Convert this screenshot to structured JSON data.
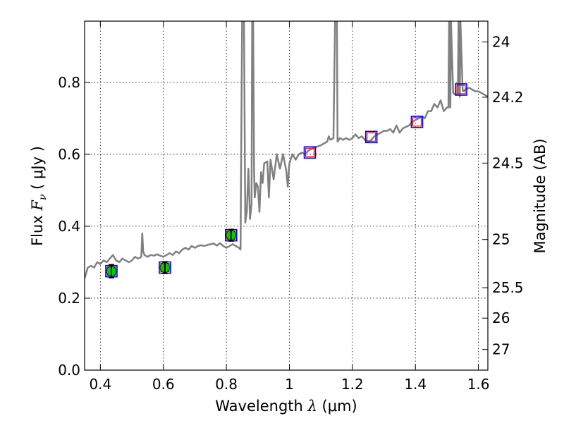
{
  "chart_data": {
    "type": "line",
    "title": "",
    "xlabel": {
      "prefix": "Wavelength ",
      "symbol": "λ",
      "unit": "(μm)"
    },
    "ylabel": {
      "prefix": "Flux ",
      "symbol": "F",
      "subscript": "ν",
      "unit": "( μJy )"
    },
    "y2label": "Magnitude (AB)",
    "xlim": [
      0.35,
      1.63
    ],
    "ylim": [
      0.0,
      0.97
    ],
    "x_ticks": [
      {
        "value": 0.4,
        "label": "0.4"
      },
      {
        "value": 0.6,
        "label": "0.6"
      },
      {
        "value": 0.8,
        "label": "0.8"
      },
      {
        "value": 1.0,
        "label": "1"
      },
      {
        "value": 1.2,
        "label": "1.2"
      },
      {
        "value": 1.4,
        "label": "1.4"
      },
      {
        "value": 1.6,
        "label": "1.6"
      }
    ],
    "y_ticks": [
      {
        "value": 0.0,
        "label": "0.0"
      },
      {
        "value": 0.2,
        "label": "0.2"
      },
      {
        "value": 0.4,
        "label": "0.4"
      },
      {
        "value": 0.6,
        "label": "0.6"
      },
      {
        "value": 0.8,
        "label": "0.8"
      }
    ],
    "mag_ticks": [
      {
        "value": 24,
        "label": "24"
      },
      {
        "value": 24.2,
        "label": "24.2"
      },
      {
        "value": 24.5,
        "label": "24.5"
      },
      {
        "value": 25,
        "label": "25"
      },
      {
        "value": 25.5,
        "label": "25.5"
      },
      {
        "value": 26,
        "label": "26"
      },
      {
        "value": 27,
        "label": "27"
      }
    ],
    "grid": true,
    "colors": {
      "model": "#808080",
      "observed_fill": "#00cc00",
      "box_edge": "#0000ff",
      "model_marker": "#ff0000",
      "errorbar": "#000000"
    },
    "series": [
      {
        "kind": "model_spectrum",
        "x": [
          0.35,
          0.36,
          0.37,
          0.38,
          0.39,
          0.4,
          0.41,
          0.42,
          0.43,
          0.44,
          0.45,
          0.46,
          0.47,
          0.48,
          0.49,
          0.5,
          0.51,
          0.52,
          0.53,
          0.533,
          0.536,
          0.54,
          0.55,
          0.56,
          0.57,
          0.58,
          0.59,
          0.6,
          0.61,
          0.62,
          0.63,
          0.64,
          0.65,
          0.66,
          0.67,
          0.68,
          0.69,
          0.7,
          0.71,
          0.72,
          0.73,
          0.74,
          0.75,
          0.76,
          0.77,
          0.78,
          0.79,
          0.8,
          0.81,
          0.82,
          0.83,
          0.84,
          0.845,
          0.85,
          0.852,
          0.854,
          0.856,
          0.86,
          0.865,
          0.87,
          0.875,
          0.88,
          0.882,
          0.885,
          0.888,
          0.89,
          0.895,
          0.9,
          0.905,
          0.91,
          0.915,
          0.92,
          0.93,
          0.935,
          0.94,
          0.95,
          0.96,
          0.97,
          0.98,
          0.99,
          0.995,
          1.0,
          1.01,
          1.02,
          1.03,
          1.04,
          1.05,
          1.06,
          1.07,
          1.08,
          1.09,
          1.1,
          1.11,
          1.12,
          1.125,
          1.13,
          1.14,
          1.145,
          1.147,
          1.149,
          1.151,
          1.153,
          1.16,
          1.17,
          1.18,
          1.19,
          1.2,
          1.21,
          1.22,
          1.23,
          1.24,
          1.25,
          1.26,
          1.27,
          1.28,
          1.29,
          1.3,
          1.31,
          1.32,
          1.33,
          1.34,
          1.35,
          1.36,
          1.37,
          1.38,
          1.39,
          1.4,
          1.41,
          1.42,
          1.43,
          1.44,
          1.45,
          1.46,
          1.47,
          1.48,
          1.49,
          1.5,
          1.505,
          1.507,
          1.509,
          1.511,
          1.513,
          1.52,
          1.53,
          1.535,
          1.537,
          1.539,
          1.541,
          1.543,
          1.55,
          1.56,
          1.57,
          1.58,
          1.59,
          1.6,
          1.61,
          1.62,
          1.63
        ],
        "y": [
          0.255,
          0.285,
          0.29,
          0.285,
          0.3,
          0.295,
          0.305,
          0.3,
          0.31,
          0.32,
          0.305,
          0.3,
          0.31,
          0.305,
          0.3,
          0.305,
          0.315,
          0.31,
          0.315,
          0.38,
          0.33,
          0.32,
          0.315,
          0.32,
          0.318,
          0.322,
          0.318,
          0.315,
          0.32,
          0.325,
          0.32,
          0.33,
          0.325,
          0.335,
          0.34,
          0.335,
          0.345,
          0.34,
          0.345,
          0.347,
          0.345,
          0.348,
          0.35,
          0.352,
          0.346,
          0.353,
          0.345,
          0.34,
          0.345,
          0.35,
          0.345,
          0.34,
          0.335,
          0.97,
          0.97,
          0.97,
          0.97,
          0.41,
          0.44,
          0.56,
          0.42,
          0.46,
          0.97,
          0.97,
          0.55,
          0.48,
          0.52,
          0.51,
          0.44,
          0.55,
          0.52,
          0.575,
          0.58,
          0.48,
          0.585,
          0.53,
          0.6,
          0.56,
          0.6,
          0.555,
          0.51,
          0.575,
          0.6,
          0.585,
          0.6,
          0.605,
          0.6,
          0.61,
          0.615,
          0.618,
          0.622,
          0.625,
          0.63,
          0.635,
          0.65,
          0.64,
          0.645,
          0.97,
          0.97,
          0.97,
          0.97,
          0.635,
          0.645,
          0.64,
          0.645,
          0.64,
          0.645,
          0.655,
          0.645,
          0.65,
          0.64,
          0.635,
          0.64,
          0.65,
          0.655,
          0.66,
          0.665,
          0.665,
          0.67,
          0.66,
          0.68,
          0.66,
          0.672,
          0.676,
          0.68,
          0.69,
          0.695,
          0.7,
          0.705,
          0.7,
          0.72,
          0.72,
          0.74,
          0.73,
          0.75,
          0.72,
          0.73,
          0.73,
          0.97,
          0.97,
          0.73,
          0.97,
          0.77,
          0.765,
          0.77,
          0.97,
          0.97,
          0.76,
          0.97,
          0.775,
          0.78,
          0.785,
          0.78,
          0.775,
          0.775,
          0.77,
          0.765,
          0.76
        ]
      },
      {
        "kind": "observed_photometry",
        "x": [
          0.435,
          0.605,
          0.815
        ],
        "y": [
          0.275,
          0.285,
          0.375
        ],
        "yerr": [
          0.018,
          0.016,
          0.016
        ]
      },
      {
        "kind": "model_photometry",
        "x": [
          0.435,
          0.605,
          0.815,
          1.065,
          1.26,
          1.405,
          1.545
        ],
        "y": [
          0.275,
          0.285,
          0.375,
          0.605,
          0.648,
          0.69,
          0.78
        ]
      }
    ]
  }
}
